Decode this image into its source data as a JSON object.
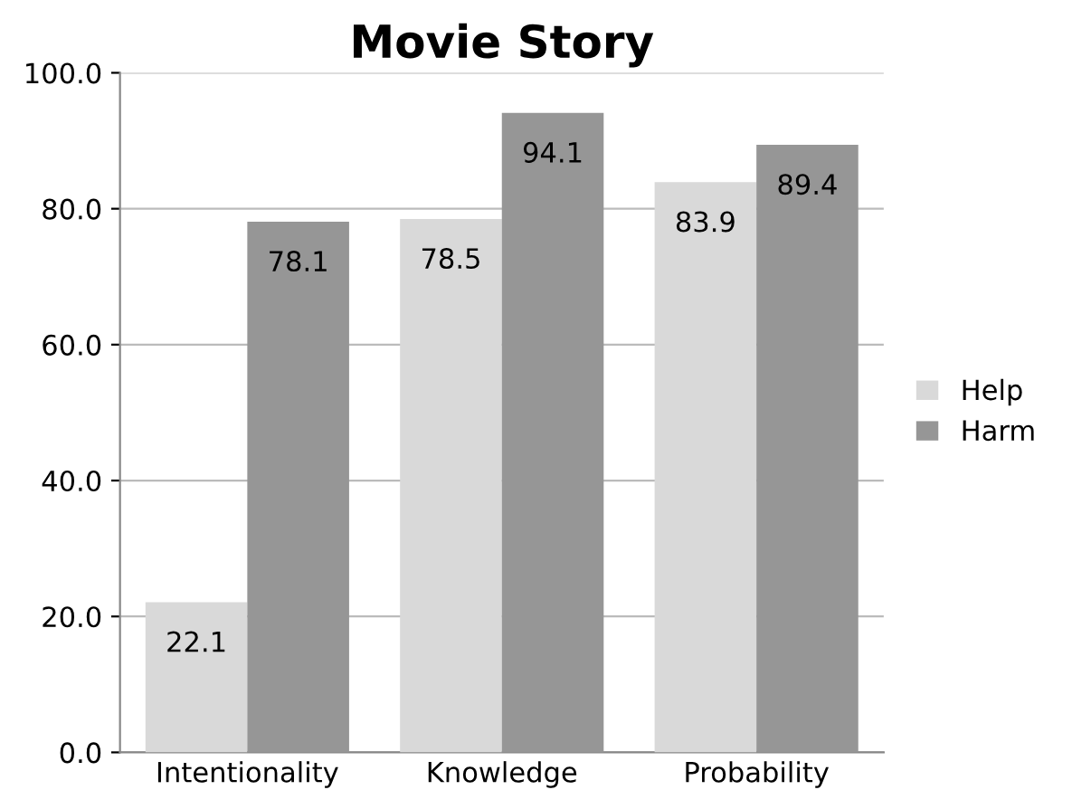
{
  "chart_data": {
    "type": "bar",
    "title": "Movie Story",
    "categories": [
      "Intentionality",
      "Knowledge",
      "Probability"
    ],
    "series": [
      {
        "name": "Help",
        "color": "#d9d9d9",
        "values": [
          22.1,
          78.5,
          83.9
        ]
      },
      {
        "name": "Harm",
        "color": "#969696",
        "values": [
          78.1,
          94.1,
          89.4
        ]
      }
    ],
    "ylim": [
      0,
      100
    ],
    "yticks": [
      {
        "value": 0,
        "label": "0.0"
      },
      {
        "value": 20,
        "label": "20.0"
      },
      {
        "value": 40,
        "label": "40.0"
      },
      {
        "value": 60,
        "label": "60.0"
      },
      {
        "value": 80,
        "label": "80.0"
      },
      {
        "value": 100,
        "label": "100.0"
      }
    ],
    "grid": "y",
    "legend": "right",
    "data_labels": true
  }
}
